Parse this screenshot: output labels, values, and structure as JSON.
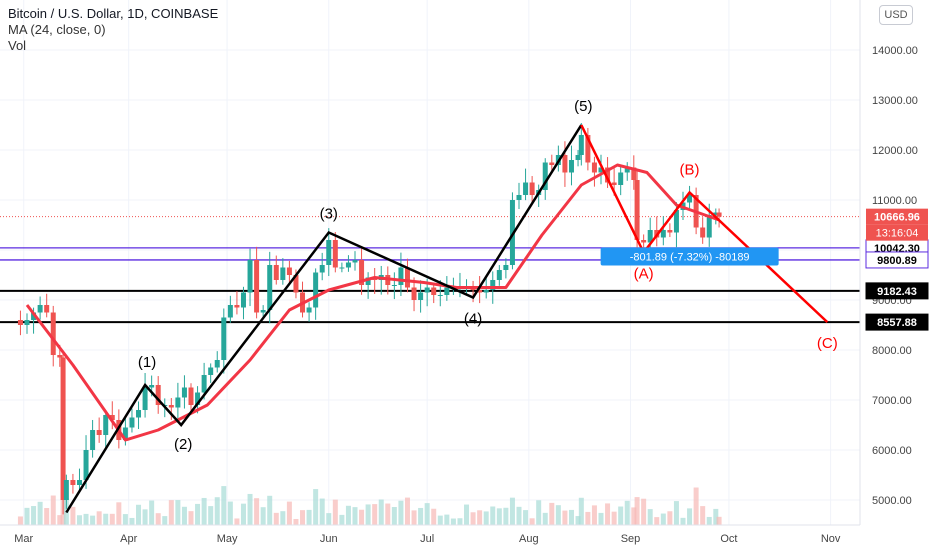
{
  "header": {
    "title": "Bitcoin / U.S. Dollar, 1D, COINBASE",
    "indicator": "MA (24, close, 0)",
    "volume": "Vol"
  },
  "currency_button": "USD",
  "colors": {
    "up": "#26a69a",
    "down": "#ef5350",
    "ma": "#f23645",
    "wave_black": "#000000",
    "wave_red": "#ff0000",
    "level_purple": "#5b2be0",
    "measure": "#2196f3"
  },
  "chart_data": {
    "type": "candlestick",
    "symbol": "BTCUSD",
    "timeframe": "1D",
    "x_ticks": [
      "Mar",
      "Apr",
      "May",
      "Jun",
      "Jul",
      "Aug",
      "Sep",
      "Oct",
      "Nov"
    ],
    "y_ticks": [
      "5000.00",
      "6000.00",
      "7000.00",
      "8000.00",
      "9000.00",
      "10000.00",
      "11000.00",
      "12000.00",
      "13000.00",
      "14000.00"
    ],
    "ylim": [
      4500,
      14900
    ],
    "price_closes": [
      [
        "2020-02-26",
        8600
      ],
      [
        "2020-02-28",
        8500
      ],
      [
        "2020-03-01",
        8600
      ],
      [
        "2020-03-03",
        8750
      ],
      [
        "2020-03-05",
        8900
      ],
      [
        "2020-03-07",
        8750
      ],
      [
        "2020-03-09",
        7900
      ],
      [
        "2020-03-11",
        7850
      ],
      [
        "2020-03-12",
        5000
      ],
      [
        "2020-03-13",
        5400
      ],
      [
        "2020-03-15",
        5300
      ],
      [
        "2020-03-17",
        5400
      ],
      [
        "2020-03-19",
        6000
      ],
      [
        "2020-03-21",
        6400
      ],
      [
        "2020-03-23",
        6300
      ],
      [
        "2020-03-25",
        6700
      ],
      [
        "2020-03-27",
        6600
      ],
      [
        "2020-03-29",
        6200
      ],
      [
        "2020-03-31",
        6450
      ],
      [
        "2020-04-02",
        6650
      ],
      [
        "2020-04-04",
        6800
      ],
      [
        "2020-04-06",
        7250
      ],
      [
        "2020-04-08",
        7300
      ],
      [
        "2020-04-10",
        6900
      ],
      [
        "2020-04-12",
        6900
      ],
      [
        "2020-04-14",
        6850
      ],
      [
        "2020-04-16",
        7050
      ],
      [
        "2020-04-18",
        7250
      ],
      [
        "2020-04-20",
        6900
      ],
      [
        "2020-04-22",
        7150
      ],
      [
        "2020-04-24",
        7500
      ],
      [
        "2020-04-26",
        7650
      ],
      [
        "2020-04-28",
        7800
      ],
      [
        "2020-04-30",
        8650
      ],
      [
        "2020-05-02",
        8900
      ],
      [
        "2020-05-04",
        8850
      ],
      [
        "2020-05-06",
        9150
      ],
      [
        "2020-05-08",
        9800
      ],
      [
        "2020-05-10",
        8750
      ],
      [
        "2020-05-12",
        8800
      ],
      [
        "2020-05-14",
        9700
      ],
      [
        "2020-05-16",
        9400
      ],
      [
        "2020-05-18",
        9650
      ],
      [
        "2020-05-20",
        9500
      ],
      [
        "2020-05-22",
        9150
      ],
      [
        "2020-05-24",
        8750
      ],
      [
        "2020-05-26",
        8850
      ],
      [
        "2020-05-28",
        9550
      ],
      [
        "2020-05-30",
        9700
      ],
      [
        "2020-06-01",
        10200
      ],
      [
        "2020-06-03",
        9650
      ],
      [
        "2020-06-05",
        9650
      ],
      [
        "2020-06-07",
        9750
      ],
      [
        "2020-06-09",
        9800
      ],
      [
        "2020-06-11",
        9300
      ],
      [
        "2020-06-13",
        9450
      ],
      [
        "2020-06-15",
        9400
      ],
      [
        "2020-06-17",
        9500
      ],
      [
        "2020-06-19",
        9300
      ],
      [
        "2020-06-21",
        9300
      ],
      [
        "2020-06-23",
        9650
      ],
      [
        "2020-06-25",
        9250
      ],
      [
        "2020-06-27",
        9000
      ],
      [
        "2020-06-29",
        9150
      ],
      [
        "2020-07-01",
        9250
      ],
      [
        "2020-07-03",
        9100
      ],
      [
        "2020-07-05",
        9100
      ],
      [
        "2020-07-07",
        9250
      ],
      [
        "2020-07-09",
        9250
      ],
      [
        "2020-07-11",
        9250
      ],
      [
        "2020-07-13",
        9250
      ],
      [
        "2020-07-15",
        9200
      ],
      [
        "2020-07-17",
        9150
      ],
      [
        "2020-07-19",
        9200
      ],
      [
        "2020-07-21",
        9400
      ],
      [
        "2020-07-23",
        9600
      ],
      [
        "2020-07-25",
        9700
      ],
      [
        "2020-07-27",
        11000
      ],
      [
        "2020-07-29",
        11100
      ],
      [
        "2020-07-31",
        11350
      ],
      [
        "2020-08-02",
        11100
      ],
      [
        "2020-08-04",
        11200
      ],
      [
        "2020-08-06",
        11750
      ],
      [
        "2020-08-08",
        11700
      ],
      [
        "2020-08-10",
        11900
      ],
      [
        "2020-08-12",
        11550
      ],
      [
        "2020-08-14",
        11800
      ],
      [
        "2020-08-16",
        11900
      ],
      [
        "2020-08-17",
        12300
      ],
      [
        "2020-08-19",
        11750
      ],
      [
        "2020-08-21",
        11550
      ],
      [
        "2020-08-23",
        11650
      ],
      [
        "2020-08-25",
        11350
      ],
      [
        "2020-08-27",
        11300
      ],
      [
        "2020-08-29",
        11550
      ],
      [
        "2020-08-31",
        11650
      ],
      [
        "2020-09-02",
        11400
      ],
      [
        "2020-09-03",
        10200
      ],
      [
        "2020-09-05",
        10150
      ],
      [
        "2020-09-07",
        10400
      ],
      [
        "2020-09-09",
        10250
      ],
      [
        "2020-09-11",
        10400
      ],
      [
        "2020-09-13",
        10350
      ],
      [
        "2020-09-15",
        10800
      ],
      [
        "2020-09-17",
        10950
      ],
      [
        "2020-09-19",
        11100
      ],
      [
        "2020-09-21",
        10450
      ],
      [
        "2020-09-23",
        10250
      ],
      [
        "2020-09-25",
        10700
      ],
      [
        "2020-09-27",
        10750
      ],
      [
        "2020-09-28",
        10667
      ]
    ],
    "ma_24": [
      [
        "2020-03-01",
        8900
      ],
      [
        "2020-03-15",
        7700
      ],
      [
        "2020-03-31",
        6200
      ],
      [
        "2020-04-10",
        6400
      ],
      [
        "2020-04-25",
        6900
      ],
      [
        "2020-05-08",
        7800
      ],
      [
        "2020-05-20",
        8800
      ],
      [
        "2020-06-01",
        9200
      ],
      [
        "2020-06-15",
        9450
      ],
      [
        "2020-06-30",
        9350
      ],
      [
        "2020-07-10",
        9250
      ],
      [
        "2020-07-25",
        9250
      ],
      [
        "2020-08-05",
        10300
      ],
      [
        "2020-08-17",
        11300
      ],
      [
        "2020-08-28",
        11700
      ],
      [
        "2020-09-06",
        11550
      ],
      [
        "2020-09-15",
        10900
      ],
      [
        "2020-09-28",
        10600
      ]
    ],
    "waves_black": [
      {
        "label": "(1)",
        "date": "2020-04-06",
        "price": 7300
      },
      {
        "label": "(2)",
        "date": "2020-04-17",
        "price": 6500
      },
      {
        "label": "(3)",
        "date": "2020-06-01",
        "price": 10350
      },
      {
        "label": "(4)",
        "date": "2020-07-15",
        "price": 9050
      },
      {
        "label": "(5)",
        "date": "2020-08-17",
        "price": 12500
      }
    ],
    "wave_start": {
      "date": "2020-03-13",
      "price": 4750
    },
    "waves_red": [
      {
        "label": "(A)",
        "date": "2020-09-05",
        "price": 9950
      },
      {
        "label": "(B)",
        "date": "2020-09-19",
        "price": 11150
      },
      {
        "label": "(C)",
        "date": "2020-10-31",
        "price": 8557.88
      }
    ],
    "horizontal_lines": [
      {
        "price": 10042.3,
        "label": "10042.30",
        "color": "#5b2be0"
      },
      {
        "price": 9800.89,
        "label": "9800.89",
        "color": "#5b2be0"
      },
      {
        "price": 9182.43,
        "label": "9182.43",
        "color": "#000000"
      },
      {
        "price": 8557.88,
        "label": "8557.88",
        "color": "#000000"
      }
    ],
    "current_price": {
      "label": "10666.96",
      "countdown": "13:16:04"
    },
    "measure_label": "-801.89 (-7.32%) -80189"
  }
}
